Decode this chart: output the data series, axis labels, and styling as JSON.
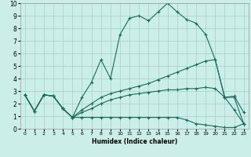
{
  "xlabel": "Humidex (Indice chaleur)",
  "bg_color": "#cceee8",
  "grid_color": "#aad4ce",
  "line_color": "#1a6b5a",
  "xlim": [
    -0.5,
    23.5
  ],
  "ylim": [
    0,
    10
  ],
  "xticks": [
    0,
    1,
    2,
    3,
    4,
    5,
    6,
    7,
    8,
    9,
    10,
    11,
    12,
    13,
    14,
    15,
    16,
    17,
    18,
    19,
    20,
    21,
    22,
    23
  ],
  "yticks": [
    0,
    1,
    2,
    3,
    4,
    5,
    6,
    7,
    8,
    9,
    10
  ],
  "line1_x": [
    0,
    1,
    2,
    3,
    4,
    5,
    6,
    7,
    8,
    9,
    10,
    11,
    12,
    13,
    14,
    15,
    16,
    17,
    18,
    19,
    20,
    21,
    22,
    23
  ],
  "line1_y": [
    2.7,
    1.4,
    2.7,
    2.6,
    1.6,
    0.9,
    2.5,
    3.7,
    5.5,
    4.0,
    7.5,
    8.8,
    9.0,
    8.6,
    9.3,
    10.0,
    9.3,
    8.7,
    8.4,
    7.5,
    5.5,
    2.5,
    2.6,
    1.3
  ],
  "line2_x": [
    0,
    1,
    2,
    3,
    4,
    5,
    6,
    7,
    8,
    9,
    10,
    11,
    12,
    13,
    14,
    15,
    16,
    17,
    18,
    19,
    20,
    21,
    22,
    23
  ],
  "line2_y": [
    2.7,
    1.4,
    2.7,
    2.6,
    1.6,
    0.9,
    1.5,
    2.0,
    2.5,
    2.8,
    3.0,
    3.2,
    3.4,
    3.6,
    3.9,
    4.2,
    4.5,
    4.8,
    5.1,
    5.4,
    5.5,
    2.5,
    2.5,
    0.4
  ],
  "line3_x": [
    0,
    1,
    2,
    3,
    4,
    5,
    6,
    7,
    8,
    9,
    10,
    11,
    12,
    13,
    14,
    15,
    16,
    17,
    18,
    19,
    20,
    21,
    22,
    23
  ],
  "line3_y": [
    2.7,
    1.4,
    2.7,
    2.6,
    1.6,
    0.9,
    1.3,
    1.6,
    2.0,
    2.3,
    2.5,
    2.7,
    2.8,
    2.9,
    3.0,
    3.1,
    3.1,
    3.2,
    3.2,
    3.3,
    3.2,
    2.5,
    1.5,
    0.4
  ],
  "line4_x": [
    0,
    1,
    2,
    3,
    4,
    5,
    6,
    7,
    8,
    9,
    10,
    11,
    12,
    13,
    14,
    15,
    16,
    17,
    18,
    19,
    20,
    21,
    22,
    23
  ],
  "line4_y": [
    2.7,
    1.4,
    2.7,
    2.6,
    1.6,
    0.9,
    0.9,
    0.9,
    0.9,
    0.9,
    0.9,
    0.9,
    0.9,
    0.9,
    0.9,
    0.9,
    0.9,
    0.7,
    0.4,
    0.3,
    0.2,
    0.1,
    0.1,
    0.4
  ]
}
